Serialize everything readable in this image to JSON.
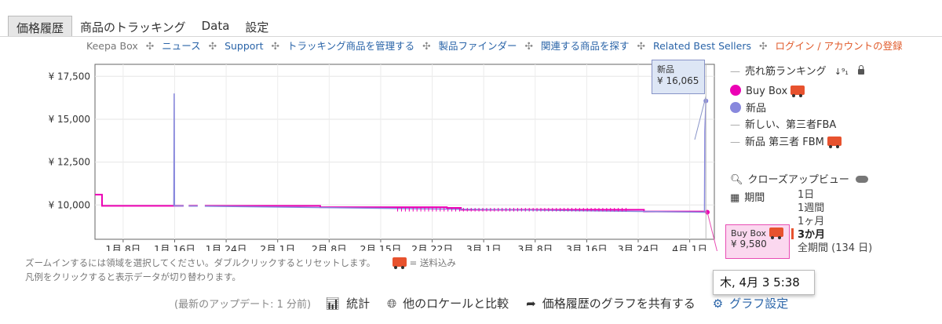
{
  "tabs": [
    "価格履歴",
    "商品のトラッキング",
    "Data",
    "設定"
  ],
  "nav": {
    "brand": "Keepa Box",
    "links": [
      "ニュース",
      "Support",
      "トラッキング商品を管理する",
      "製品ファインダー",
      "関連する商品を探す",
      "Related Best Sellers"
    ],
    "login": "ログイン / アカウントの登録"
  },
  "legend": {
    "sales_rank": "売れ筋ランキング",
    "buy_box": "Buy Box",
    "new": "新品",
    "new_fba": "新しい、第三者FBA",
    "new_fbm": "新品 第三者 FBM",
    "closeup": "クローズアップビュー",
    "period_label": "期間",
    "ranges": [
      "1日",
      "1週間",
      "1ヶ月",
      "3か月",
      "全期間 (134 日)"
    ],
    "selected_range": "3か月"
  },
  "notes": {
    "zoom": "ズームインするには領域を選択してください。ダブルクリックするとリセットします。",
    "shipping": "= 送料込み",
    "toggle": "凡例をクリックすると表示データが切り替わります。"
  },
  "tooltips": {
    "new_label": "新品",
    "new_value": "¥ 16,065",
    "buybox_label": "Buy Box",
    "buybox_value": "¥ 9,580",
    "date": "木, 4月 3 5:38"
  },
  "footer": {
    "updated": "(最新のアップデート: 1 分前)",
    "stats": "統計",
    "compare": "他のロケールと比較",
    "share": "価格履歴のグラフを共有する",
    "settings": "グラフ設定"
  },
  "colors": {
    "buy_box": "#ec00b4",
    "new": "#8888dd",
    "accent": "#e7522e",
    "link": "#2a64a8"
  },
  "chart_data": {
    "type": "line",
    "x_ticks": [
      "1月 8日",
      "1月 16日",
      "1月 24日",
      "2月 1日",
      "2月 8日",
      "2月 15日",
      "2月 22日",
      "3月 1日",
      "3月 8日",
      "3月 16日",
      "3月 24日",
      "4月 1日"
    ],
    "y_ticks": [
      "¥ 10,000",
      "¥ 12,500",
      "¥ 15,000",
      "¥ 17,500"
    ],
    "ylim": [
      8000,
      18200
    ],
    "xlim": [
      0,
      88
    ],
    "series": [
      {
        "name": "Buy Box",
        "points": [
          [
            0,
            10600
          ],
          [
            1,
            10600
          ],
          [
            1,
            9950
          ],
          [
            11,
            9950
          ],
          [
            12.6,
            9950
          ],
          [
            17,
            9950
          ],
          [
            32,
            9870
          ],
          [
            50,
            9830
          ],
          [
            52,
            9720
          ],
          [
            78,
            9620
          ],
          [
            87,
            9580
          ]
        ]
      },
      {
        "name": "新品",
        "points": [
          [
            11.2,
            9950
          ],
          [
            11.25,
            16500
          ],
          [
            11.3,
            9950
          ],
          [
            86.6,
            9580
          ],
          [
            86.65,
            14300
          ],
          [
            86.8,
            16065
          ]
        ]
      }
    ]
  }
}
